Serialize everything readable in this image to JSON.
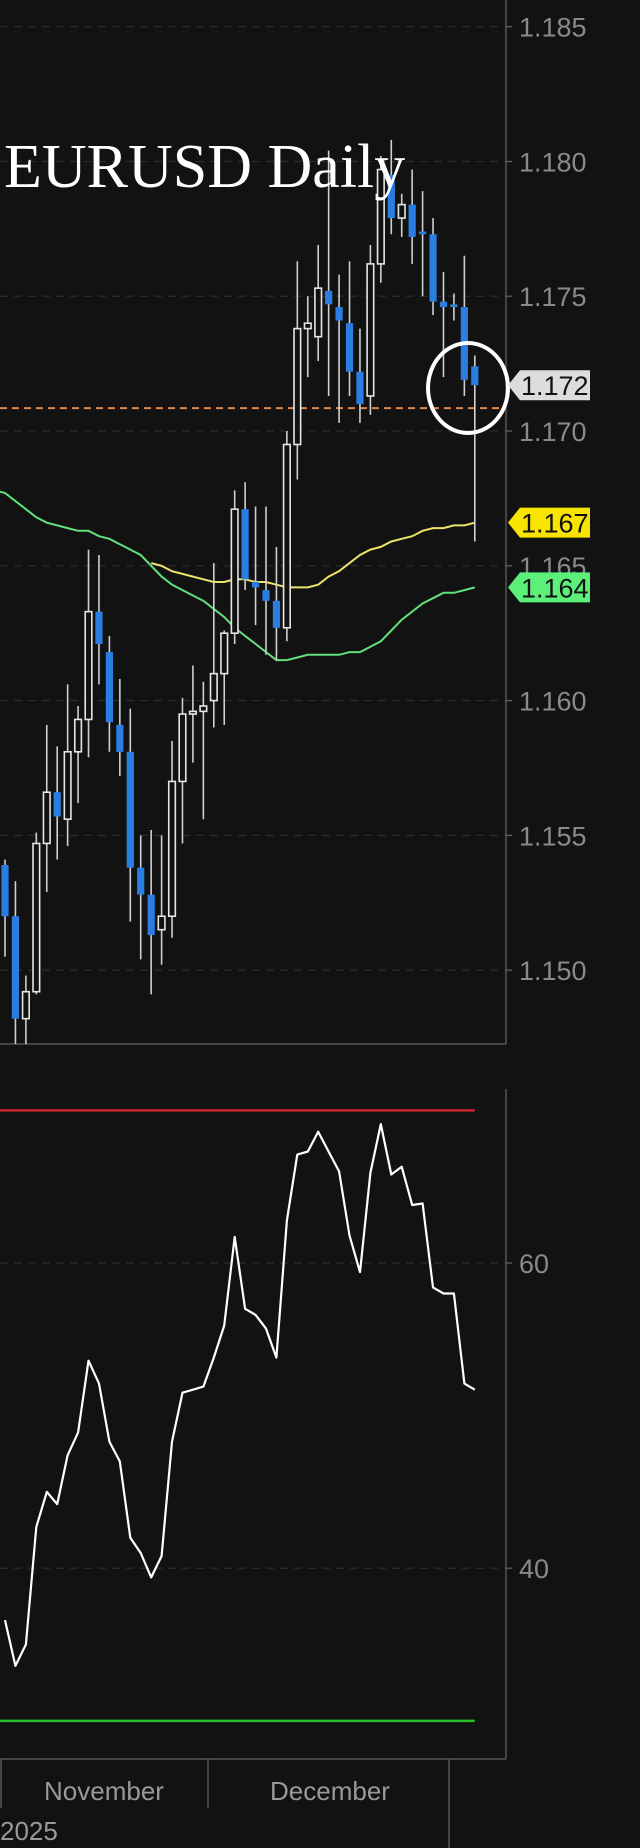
{
  "chart_data": [
    {
      "type": "candlestick",
      "title": "EURUSD Daily",
      "ylim": [
        1.14726,
        1.18599
      ],
      "yticks": [
        "1.150",
        "1.155",
        "1.160",
        "1.165",
        "1.170",
        "1.175",
        "1.180",
        "1.185"
      ],
      "grid": true,
      "colors": {
        "bearish": "#2a7de1",
        "bullish": "#e6e6e6",
        "ma_fast": "#ece36a",
        "ma_slow": "#62e07a",
        "reference_line": "#e0874e"
      },
      "candles_ohlc": [
        [
          1.1539,
          1.1541,
          1.1505,
          1.152
        ],
        [
          1.152,
          1.1533,
          1.1465,
          1.1482
        ],
        [
          1.1482,
          1.1498,
          1.147,
          1.1492
        ],
        [
          1.1492,
          1.1551,
          1.1491,
          1.1547
        ],
        [
          1.1547,
          1.1591,
          1.1529,
          1.1566
        ],
        [
          1.1566,
          1.1583,
          1.1541,
          1.1557
        ],
        [
          1.1556,
          1.1606,
          1.1546,
          1.1581
        ],
        [
          1.1581,
          1.1598,
          1.1562,
          1.1593
        ],
        [
          1.1593,
          1.1656,
          1.1579,
          1.1633
        ],
        [
          1.1633,
          1.1654,
          1.1606,
          1.1621
        ],
        [
          1.1618,
          1.1624,
          1.1581,
          1.1592
        ],
        [
          1.1591,
          1.1608,
          1.1572,
          1.1581
        ],
        [
          1.1581,
          1.1597,
          1.1518,
          1.1538
        ],
        [
          1.1538,
          1.155,
          1.1504,
          1.1528
        ],
        [
          1.1528,
          1.1552,
          1.1491,
          1.1513
        ],
        [
          1.1515,
          1.155,
          1.1502,
          1.152
        ],
        [
          1.152,
          1.1585,
          1.1512,
          1.157
        ],
        [
          1.157,
          1.1601,
          1.1547,
          1.1595
        ],
        [
          1.1595,
          1.1613,
          1.1577,
          1.1596
        ],
        [
          1.1596,
          1.1607,
          1.1556,
          1.1598
        ],
        [
          1.16,
          1.1651,
          1.159,
          1.161
        ],
        [
          1.161,
          1.1626,
          1.1591,
          1.1625
        ],
        [
          1.1625,
          1.1678,
          1.1621,
          1.1671
        ],
        [
          1.1671,
          1.1681,
          1.1641,
          1.1645
        ],
        [
          1.1644,
          1.1672,
          1.1628,
          1.1642
        ],
        [
          1.1641,
          1.1672,
          1.1617,
          1.1637
        ],
        [
          1.1637,
          1.1657,
          1.1615,
          1.1627
        ],
        [
          1.1627,
          1.17,
          1.1622,
          1.1695
        ],
        [
          1.1695,
          1.1763,
          1.1682,
          1.1738
        ],
        [
          1.1738,
          1.175,
          1.172,
          1.174
        ],
        [
          1.1735,
          1.1769,
          1.1726,
          1.1753
        ],
        [
          1.1752,
          1.1804,
          1.1713,
          1.1747
        ],
        [
          1.1746,
          1.1758,
          1.1703,
          1.1741
        ],
        [
          1.174,
          1.1763,
          1.1713,
          1.1722
        ],
        [
          1.1722,
          1.1738,
          1.1703,
          1.171
        ],
        [
          1.1713,
          1.1769,
          1.1706,
          1.1762
        ],
        [
          1.1762,
          1.1802,
          1.1755,
          1.1797
        ],
        [
          1.1795,
          1.1808,
          1.1773,
          1.1779
        ],
        [
          1.1779,
          1.1788,
          1.1772,
          1.1784
        ],
        [
          1.1784,
          1.1797,
          1.1762,
          1.1772
        ],
        [
          1.1774,
          1.1789,
          1.175,
          1.1773
        ],
        [
          1.1773,
          1.1779,
          1.1743,
          1.1748
        ],
        [
          1.1748,
          1.1759,
          1.172,
          1.1746
        ],
        [
          1.1747,
          1.1751,
          1.1741,
          1.1746
        ],
        [
          1.1746,
          1.1765,
          1.1713,
          1.1719
        ],
        [
          1.1724,
          1.1728,
          1.1659,
          1.1717
        ]
      ],
      "ma_fast": [
        null,
        null,
        null,
        null,
        null,
        null,
        null,
        null,
        null,
        null,
        null,
        null,
        null,
        null,
        1.1651,
        1.165,
        1.1648,
        1.1647,
        1.1646,
        1.1645,
        1.1644,
        1.1644,
        1.1645,
        1.1645,
        1.1644,
        1.1644,
        1.1643,
        1.1642,
        1.1642,
        1.1642,
        1.1643,
        1.1646,
        1.1648,
        1.1651,
        1.1654,
        1.1656,
        1.1657,
        1.1659,
        1.166,
        1.1661,
        1.1663,
        1.1664,
        1.1664,
        1.1665,
        1.1665,
        1.1666
      ],
      "ma_slow": [
        1.1677,
        1.1674,
        1.1671,
        1.1668,
        1.1666,
        1.1665,
        1.1664,
        1.1663,
        1.1663,
        1.1661,
        1.166,
        1.1658,
        1.1656,
        1.1654,
        1.165,
        1.1646,
        1.1643,
        1.1641,
        1.1639,
        1.1637,
        1.1634,
        1.1631,
        1.1627,
        1.1624,
        1.1621,
        1.1618,
        1.1615,
        1.1615,
        1.1616,
        1.1617,
        1.1617,
        1.1617,
        1.1617,
        1.1618,
        1.1618,
        1.162,
        1.1622,
        1.1626,
        1.163,
        1.1633,
        1.1636,
        1.1638,
        1.164,
        1.164,
        1.1641,
        1.1642
      ],
      "reference_line": 1.17085,
      "price_tags": [
        {
          "label": "1.172",
          "value": 1.1717,
          "color": "#dcdcdc"
        },
        {
          "label": "1.167",
          "value": 1.1666,
          "color": "#f7e400"
        },
        {
          "label": "1.164",
          "value": 1.1642,
          "color": "#5cf07a"
        }
      ],
      "annotation": "circle around last candles"
    },
    {
      "type": "line",
      "ylim": [
        27.5,
        71.4
      ],
      "yticks": [
        "40",
        "60"
      ],
      "levels": [
        {
          "value": 70,
          "color": "#c8262a"
        },
        {
          "value": 30,
          "color": "#27c22b"
        }
      ],
      "line_color": "#ffffff",
      "values": [
        36.6,
        33.6,
        35.0,
        42.7,
        45.0,
        44.2,
        47.4,
        48.9,
        53.6,
        52.1,
        48.3,
        47.0,
        42.0,
        41.0,
        39.4,
        40.8,
        48.3,
        51.5,
        51.7,
        51.9,
        53.8,
        55.9,
        61.7,
        57.0,
        56.6,
        55.7,
        53.8,
        62.8,
        67.1,
        67.3,
        68.6,
        67.3,
        66.0,
        61.8,
        59.4,
        65.9,
        69.1,
        65.8,
        66.3,
        63.8,
        63.9,
        58.4,
        58.0,
        58.0,
        52.1,
        51.7
      ]
    }
  ],
  "x_axis": {
    "months": [
      "November",
      "December"
    ],
    "year": "2025"
  }
}
